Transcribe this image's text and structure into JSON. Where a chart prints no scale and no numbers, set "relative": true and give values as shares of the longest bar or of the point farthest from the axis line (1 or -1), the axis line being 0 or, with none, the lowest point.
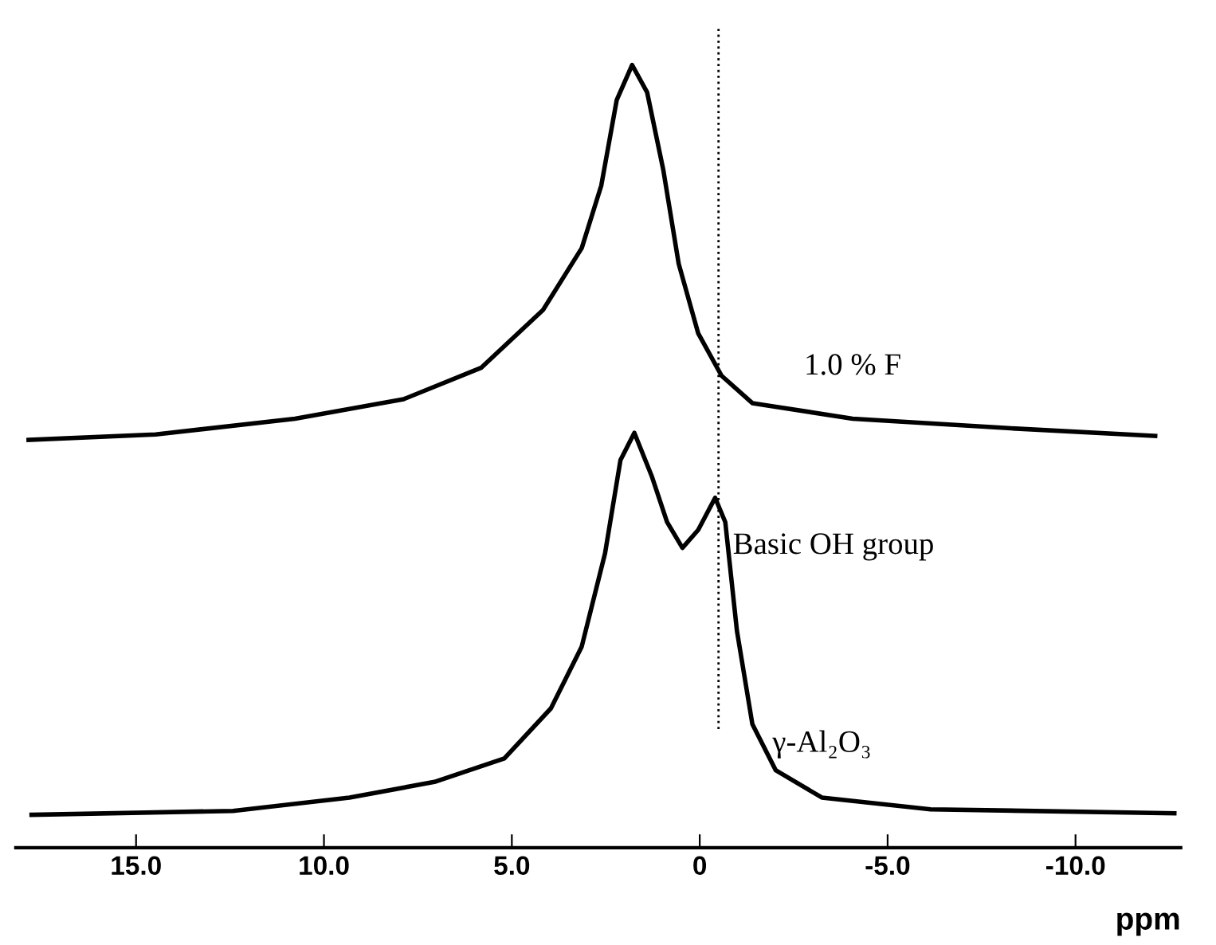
{
  "chart_data": {
    "type": "line",
    "relative": true,
    "xlabel": "ppm",
    "xlim": [
      18.2,
      -12.8
    ],
    "xticks": [
      {
        "value": 15,
        "label": "15.0"
      },
      {
        "value": 10,
        "label": "10.0"
      },
      {
        "value": 5,
        "label": "5.0"
      },
      0,
      {
        "value": -5,
        "label": "-5.0"
      },
      {
        "value": -10,
        "label": "-10.0"
      }
    ],
    "tick_labels": "x",
    "grid": false,
    "legend": false,
    "marker": "none",
    "line_style": "solid",
    "series": [
      {
        "name": "1.0 % F",
        "color": "#000000",
        "x": [
          17.86,
          14.48,
          10.77,
          7.88,
          5.82,
          4.17,
          3.14,
          2.62,
          2.21,
          1.8,
          1.4,
          0.97,
          0.56,
          0.04,
          -0.58,
          -1.4,
          -4.07,
          -8.2,
          -12.12
        ],
        "values": [
          0.521,
          0.528,
          0.548,
          0.573,
          0.613,
          0.687,
          0.766,
          0.846,
          0.955,
          1.0,
          0.965,
          0.866,
          0.746,
          0.657,
          0.603,
          0.568,
          0.548,
          0.536,
          0.526
        ]
      },
      {
        "name": "γ-Al₂O₃",
        "color": "#000000",
        "x": [
          17.78,
          12.42,
          9.32,
          7.06,
          5.2,
          3.96,
          3.14,
          2.52,
          2.11,
          1.74,
          1.28,
          0.87,
          0.46,
          0.04,
          -0.41,
          -0.68,
          -0.99,
          -1.4,
          -2.02,
          -3.25,
          -6.14,
          -12.63
        ],
        "values": [
          0.042,
          0.047,
          0.064,
          0.084,
          0.114,
          0.178,
          0.257,
          0.376,
          0.495,
          0.53,
          0.475,
          0.416,
          0.383,
          0.406,
          0.447,
          0.416,
          0.277,
          0.158,
          0.099,
          0.064,
          0.049,
          0.044
        ]
      }
    ],
    "annotations": [
      {
        "text": "Basic OH group",
        "x": -0.41,
        "y": 0.447
      }
    ],
    "ref_lines": [
      {
        "axis": "x",
        "value": -0.5,
        "line_style": "dotted",
        "color": "#000000"
      }
    ]
  }
}
